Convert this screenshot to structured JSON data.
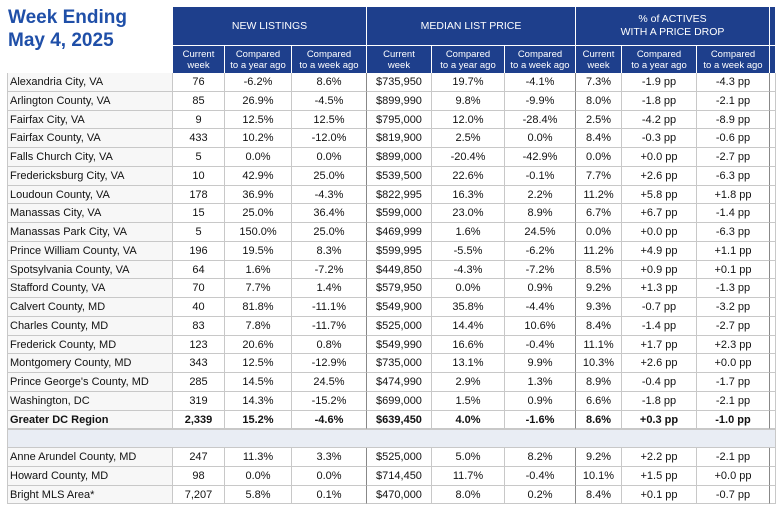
{
  "title": [
    "Week Ending",
    "May 4, 2025"
  ],
  "table": {
    "groups": [
      [
        "NEW LISTINGS"
      ],
      [
        "MEDIAN LIST PRICE"
      ],
      [
        "% of ACTIVES",
        "WITH A PRICE DROP"
      ]
    ],
    "subheaders": [
      [
        "Current",
        "week"
      ],
      [
        "Compared",
        "to a year ago"
      ],
      [
        "Compared",
        "to a week ago"
      ],
      [
        "Current",
        "week"
      ],
      [
        "Compared",
        "to a year ago"
      ],
      [
        "Compared",
        "to a week ago"
      ],
      [
        "Current",
        "week"
      ],
      [
        "Compared",
        "to a year ago"
      ],
      [
        "Compared",
        "to a week ago"
      ]
    ],
    "regions": [
      {
        "name": "Alexandria City, VA",
        "cells": [
          "76",
          "-6.2%",
          "8.6%",
          "$735,950",
          "19.7%",
          "-4.1%",
          "7.3%",
          "-1.9 pp",
          "-4.3 pp"
        ]
      },
      {
        "name": "Arlington County, VA",
        "cells": [
          "85",
          "26.9%",
          "-4.5%",
          "$899,990",
          "9.8%",
          "-9.9%",
          "8.0%",
          "-1.8 pp",
          "-2.1 pp"
        ]
      },
      {
        "name": "Fairfax City, VA",
        "cells": [
          "9",
          "12.5%",
          "12.5%",
          "$795,000",
          "12.0%",
          "-28.4%",
          "2.5%",
          "-4.2 pp",
          "-8.9 pp"
        ]
      },
      {
        "name": "Fairfax County, VA",
        "cells": [
          "433",
          "10.2%",
          "-12.0%",
          "$819,900",
          "2.5%",
          "0.0%",
          "8.4%",
          "-0.3 pp",
          "-0.6 pp"
        ]
      },
      {
        "name": "Falls Church City, VA",
        "cells": [
          "5",
          "0.0%",
          "0.0%",
          "$899,000",
          "-20.4%",
          "-42.9%",
          "0.0%",
          "+0.0 pp",
          "-2.7 pp"
        ]
      },
      {
        "name": "Fredericksburg City, VA",
        "cells": [
          "10",
          "42.9%",
          "25.0%",
          "$539,500",
          "22.6%",
          "-0.1%",
          "7.7%",
          "+2.6 pp",
          "-6.3 pp"
        ]
      },
      {
        "name": "Loudoun County, VA",
        "cells": [
          "178",
          "36.9%",
          "-4.3%",
          "$822,995",
          "16.3%",
          "2.2%",
          "11.2%",
          "+5.8 pp",
          "+1.8 pp"
        ]
      },
      {
        "name": "Manassas City, VA",
        "cells": [
          "15",
          "25.0%",
          "36.4%",
          "$599,000",
          "23.0%",
          "8.9%",
          "6.7%",
          "+6.7 pp",
          "-1.4 pp"
        ]
      },
      {
        "name": "Manassas Park City, VA",
        "cells": [
          "5",
          "150.0%",
          "25.0%",
          "$469,999",
          "1.6%",
          "24.5%",
          "0.0%",
          "+0.0 pp",
          "-6.3 pp"
        ]
      },
      {
        "name": "Prince William County, VA",
        "cells": [
          "196",
          "19.5%",
          "8.3%",
          "$599,995",
          "-5.5%",
          "-6.2%",
          "11.2%",
          "+4.9 pp",
          "+1.1 pp"
        ]
      },
      {
        "name": "Spotsylvania County, VA",
        "cells": [
          "64",
          "1.6%",
          "-7.2%",
          "$449,850",
          "-4.3%",
          "-7.2%",
          "8.5%",
          "+0.9 pp",
          "+0.1 pp"
        ]
      },
      {
        "name": "Stafford County, VA",
        "cells": [
          "70",
          "7.7%",
          "1.4%",
          "$579,950",
          "0.0%",
          "0.9%",
          "9.2%",
          "+1.3 pp",
          "-1.3 pp"
        ]
      },
      {
        "name": "Calvert County, MD",
        "cells": [
          "40",
          "81.8%",
          "-11.1%",
          "$549,900",
          "35.8%",
          "-4.4%",
          "9.3%",
          "-0.7 pp",
          "-3.2 pp"
        ]
      },
      {
        "name": "Charles County, MD",
        "cells": [
          "83",
          "7.8%",
          "-11.7%",
          "$525,000",
          "14.4%",
          "10.6%",
          "8.4%",
          "-1.4 pp",
          "-2.7 pp"
        ]
      },
      {
        "name": "Frederick County, MD",
        "cells": [
          "123",
          "20.6%",
          "0.8%",
          "$549,990",
          "16.6%",
          "-0.4%",
          "11.1%",
          "+1.7 pp",
          "+2.3 pp"
        ]
      },
      {
        "name": "Montgomery County, MD",
        "cells": [
          "343",
          "12.5%",
          "-12.9%",
          "$735,000",
          "13.1%",
          "9.9%",
          "10.3%",
          "+2.6 pp",
          "+0.0 pp"
        ]
      },
      {
        "name": "Prince George's County, MD",
        "cells": [
          "285",
          "14.5%",
          "24.5%",
          "$474,990",
          "2.9%",
          "1.3%",
          "8.9%",
          "-0.4 pp",
          "-1.7 pp"
        ]
      },
      {
        "name": "Washington, DC",
        "cells": [
          "319",
          "14.3%",
          "-15.2%",
          "$699,000",
          "1.5%",
          "0.9%",
          "6.6%",
          "-1.8 pp",
          "-2.1 pp"
        ]
      }
    ],
    "total": {
      "name": "Greater DC Region",
      "cells": [
        "2,339",
        "15.2%",
        "-4.6%",
        "$639,450",
        "4.0%",
        "-1.6%",
        "8.6%",
        "+0.3 pp",
        "-1.0 pp"
      ]
    },
    "other": [
      {
        "name": "Anne Arundel County, MD",
        "cells": [
          "247",
          "11.3%",
          "3.3%",
          "$525,000",
          "5.0%",
          "8.2%",
          "9.2%",
          "+2.2 pp",
          "-2.1 pp"
        ]
      },
      {
        "name": "Howard County, MD",
        "cells": [
          "98",
          "0.0%",
          "0.0%",
          "$714,450",
          "11.7%",
          "-0.4%",
          "10.1%",
          "+1.5 pp",
          "+0.0 pp"
        ]
      },
      {
        "name": "Bright MLS Area*",
        "cells": [
          "7,207",
          "5.8%",
          "0.1%",
          "$470,000",
          "8.0%",
          "0.2%",
          "8.4%",
          "+0.1 pp",
          "-0.7 pp"
        ]
      }
    ]
  }
}
